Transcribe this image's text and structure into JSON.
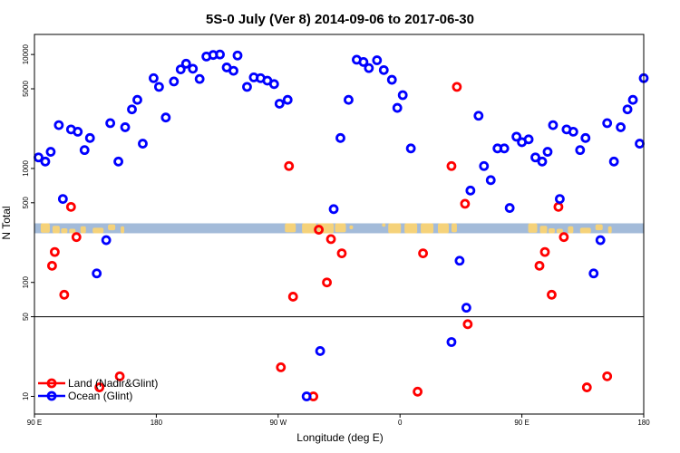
{
  "chart_data": {
    "type": "scatter",
    "title": "5S-0 July (Ver 8)   2014-09-06 to 2017-06-30",
    "xlabel": "Longitude (deg E)",
    "ylabel": "N Total",
    "xscale": "linear",
    "yscale": "log",
    "xlim": [
      90,
      540
    ],
    "ylim": [
      7,
      15000
    ],
    "x_ticks": [
      {
        "value": 90,
        "label": "90 E"
      },
      {
        "value": 180,
        "label": "180"
      },
      {
        "value": 270,
        "label": "90 W"
      },
      {
        "value": 360,
        "label": "0"
      },
      {
        "value": 450,
        "label": "90 E"
      },
      {
        "value": 540,
        "label": "180"
      }
    ],
    "y_ticks": [
      {
        "value": 10,
        "label": "10"
      },
      {
        "value": 50,
        "label": "50"
      },
      {
        "value": 100,
        "label": "100"
      },
      {
        "value": 500,
        "label": "500"
      },
      {
        "value": 1000,
        "label": "1000"
      },
      {
        "value": 5000,
        "label": "5000"
      },
      {
        "value": 10000,
        "label": "10000"
      }
    ],
    "reference_line": 50,
    "map_strip": {
      "y_range": [
        270,
        330
      ]
    },
    "legend": {
      "position": "bottom-left"
    },
    "series": [
      {
        "name": "Land (Nadir&Glint)",
        "color": "#ff0000",
        "points": [
          [
            103,
            140
          ],
          [
            105,
            185
          ],
          [
            112,
            78
          ],
          [
            117,
            460
          ],
          [
            121,
            250
          ],
          [
            138,
            12
          ],
          [
            153,
            15
          ],
          [
            272,
            18
          ],
          [
            278,
            1050
          ],
          [
            281,
            75
          ],
          [
            296,
            10
          ],
          [
            300,
            290
          ],
          [
            306,
            100
          ],
          [
            309,
            240
          ],
          [
            317,
            180
          ],
          [
            373,
            11
          ],
          [
            377,
            180
          ],
          [
            398,
            1050
          ],
          [
            402,
            5200
          ],
          [
            408,
            490
          ],
          [
            410,
            43
          ],
          [
            463,
            140
          ],
          [
            467,
            185
          ],
          [
            472,
            78
          ],
          [
            477,
            460
          ],
          [
            481,
            250
          ],
          [
            498,
            12
          ],
          [
            513,
            15
          ]
        ]
      },
      {
        "name": "Ocean (Glint)",
        "color": "#0000ff",
        "points": [
          [
            93,
            1250
          ],
          [
            98,
            1150
          ],
          [
            102,
            1400
          ],
          [
            108,
            2400
          ],
          [
            111,
            540
          ],
          [
            117,
            2200
          ],
          [
            122,
            2100
          ],
          [
            127,
            1450
          ],
          [
            131,
            1850
          ],
          [
            136,
            120
          ],
          [
            143,
            235
          ],
          [
            146,
            2500
          ],
          [
            152,
            1150
          ],
          [
            157,
            2300
          ],
          [
            162,
            3300
          ],
          [
            166,
            4000
          ],
          [
            170,
            1650
          ],
          [
            178,
            6200
          ],
          [
            182,
            5200
          ],
          [
            187,
            2800
          ],
          [
            193,
            5800
          ],
          [
            198,
            7400
          ],
          [
            202,
            8300
          ],
          [
            207,
            7500
          ],
          [
            212,
            6100
          ],
          [
            217,
            9600
          ],
          [
            222,
            9900
          ],
          [
            227,
            10000
          ],
          [
            232,
            7700
          ],
          [
            237,
            7200
          ],
          [
            240,
            9800
          ],
          [
            247,
            5200
          ],
          [
            252,
            6300
          ],
          [
            257,
            6200
          ],
          [
            262,
            5900
          ],
          [
            267,
            5500
          ],
          [
            271,
            3700
          ],
          [
            277,
            4000
          ],
          [
            291,
            10
          ],
          [
            301,
            25
          ],
          [
            311,
            440
          ],
          [
            316,
            1850
          ],
          [
            322,
            4000
          ],
          [
            328,
            9000
          ],
          [
            333,
            8600
          ],
          [
            337,
            7600
          ],
          [
            343,
            8900
          ],
          [
            348,
            7300
          ],
          [
            354,
            6000
          ],
          [
            358,
            3400
          ],
          [
            362,
            4400
          ],
          [
            368,
            1500
          ],
          [
            398,
            30
          ],
          [
            404,
            155
          ],
          [
            409,
            60
          ],
          [
            412,
            640
          ],
          [
            418,
            2900
          ],
          [
            422,
            1050
          ],
          [
            427,
            790
          ],
          [
            432,
            1500
          ],
          [
            437,
            1500
          ],
          [
            441,
            450
          ],
          [
            446,
            1900
          ],
          [
            450,
            1700
          ],
          [
            455,
            1800
          ],
          [
            460,
            1250
          ],
          [
            465,
            1150
          ],
          [
            469,
            1400
          ],
          [
            473,
            2400
          ],
          [
            478,
            540
          ],
          [
            483,
            2200
          ],
          [
            488,
            2100
          ],
          [
            493,
            1450
          ],
          [
            497,
            1850
          ],
          [
            503,
            120
          ],
          [
            508,
            235
          ],
          [
            513,
            2500
          ],
          [
            518,
            1150
          ],
          [
            523,
            2300
          ],
          [
            528,
            3300
          ],
          [
            532,
            4000
          ],
          [
            537,
            1650
          ],
          [
            540,
            6200
          ]
        ]
      }
    ]
  }
}
